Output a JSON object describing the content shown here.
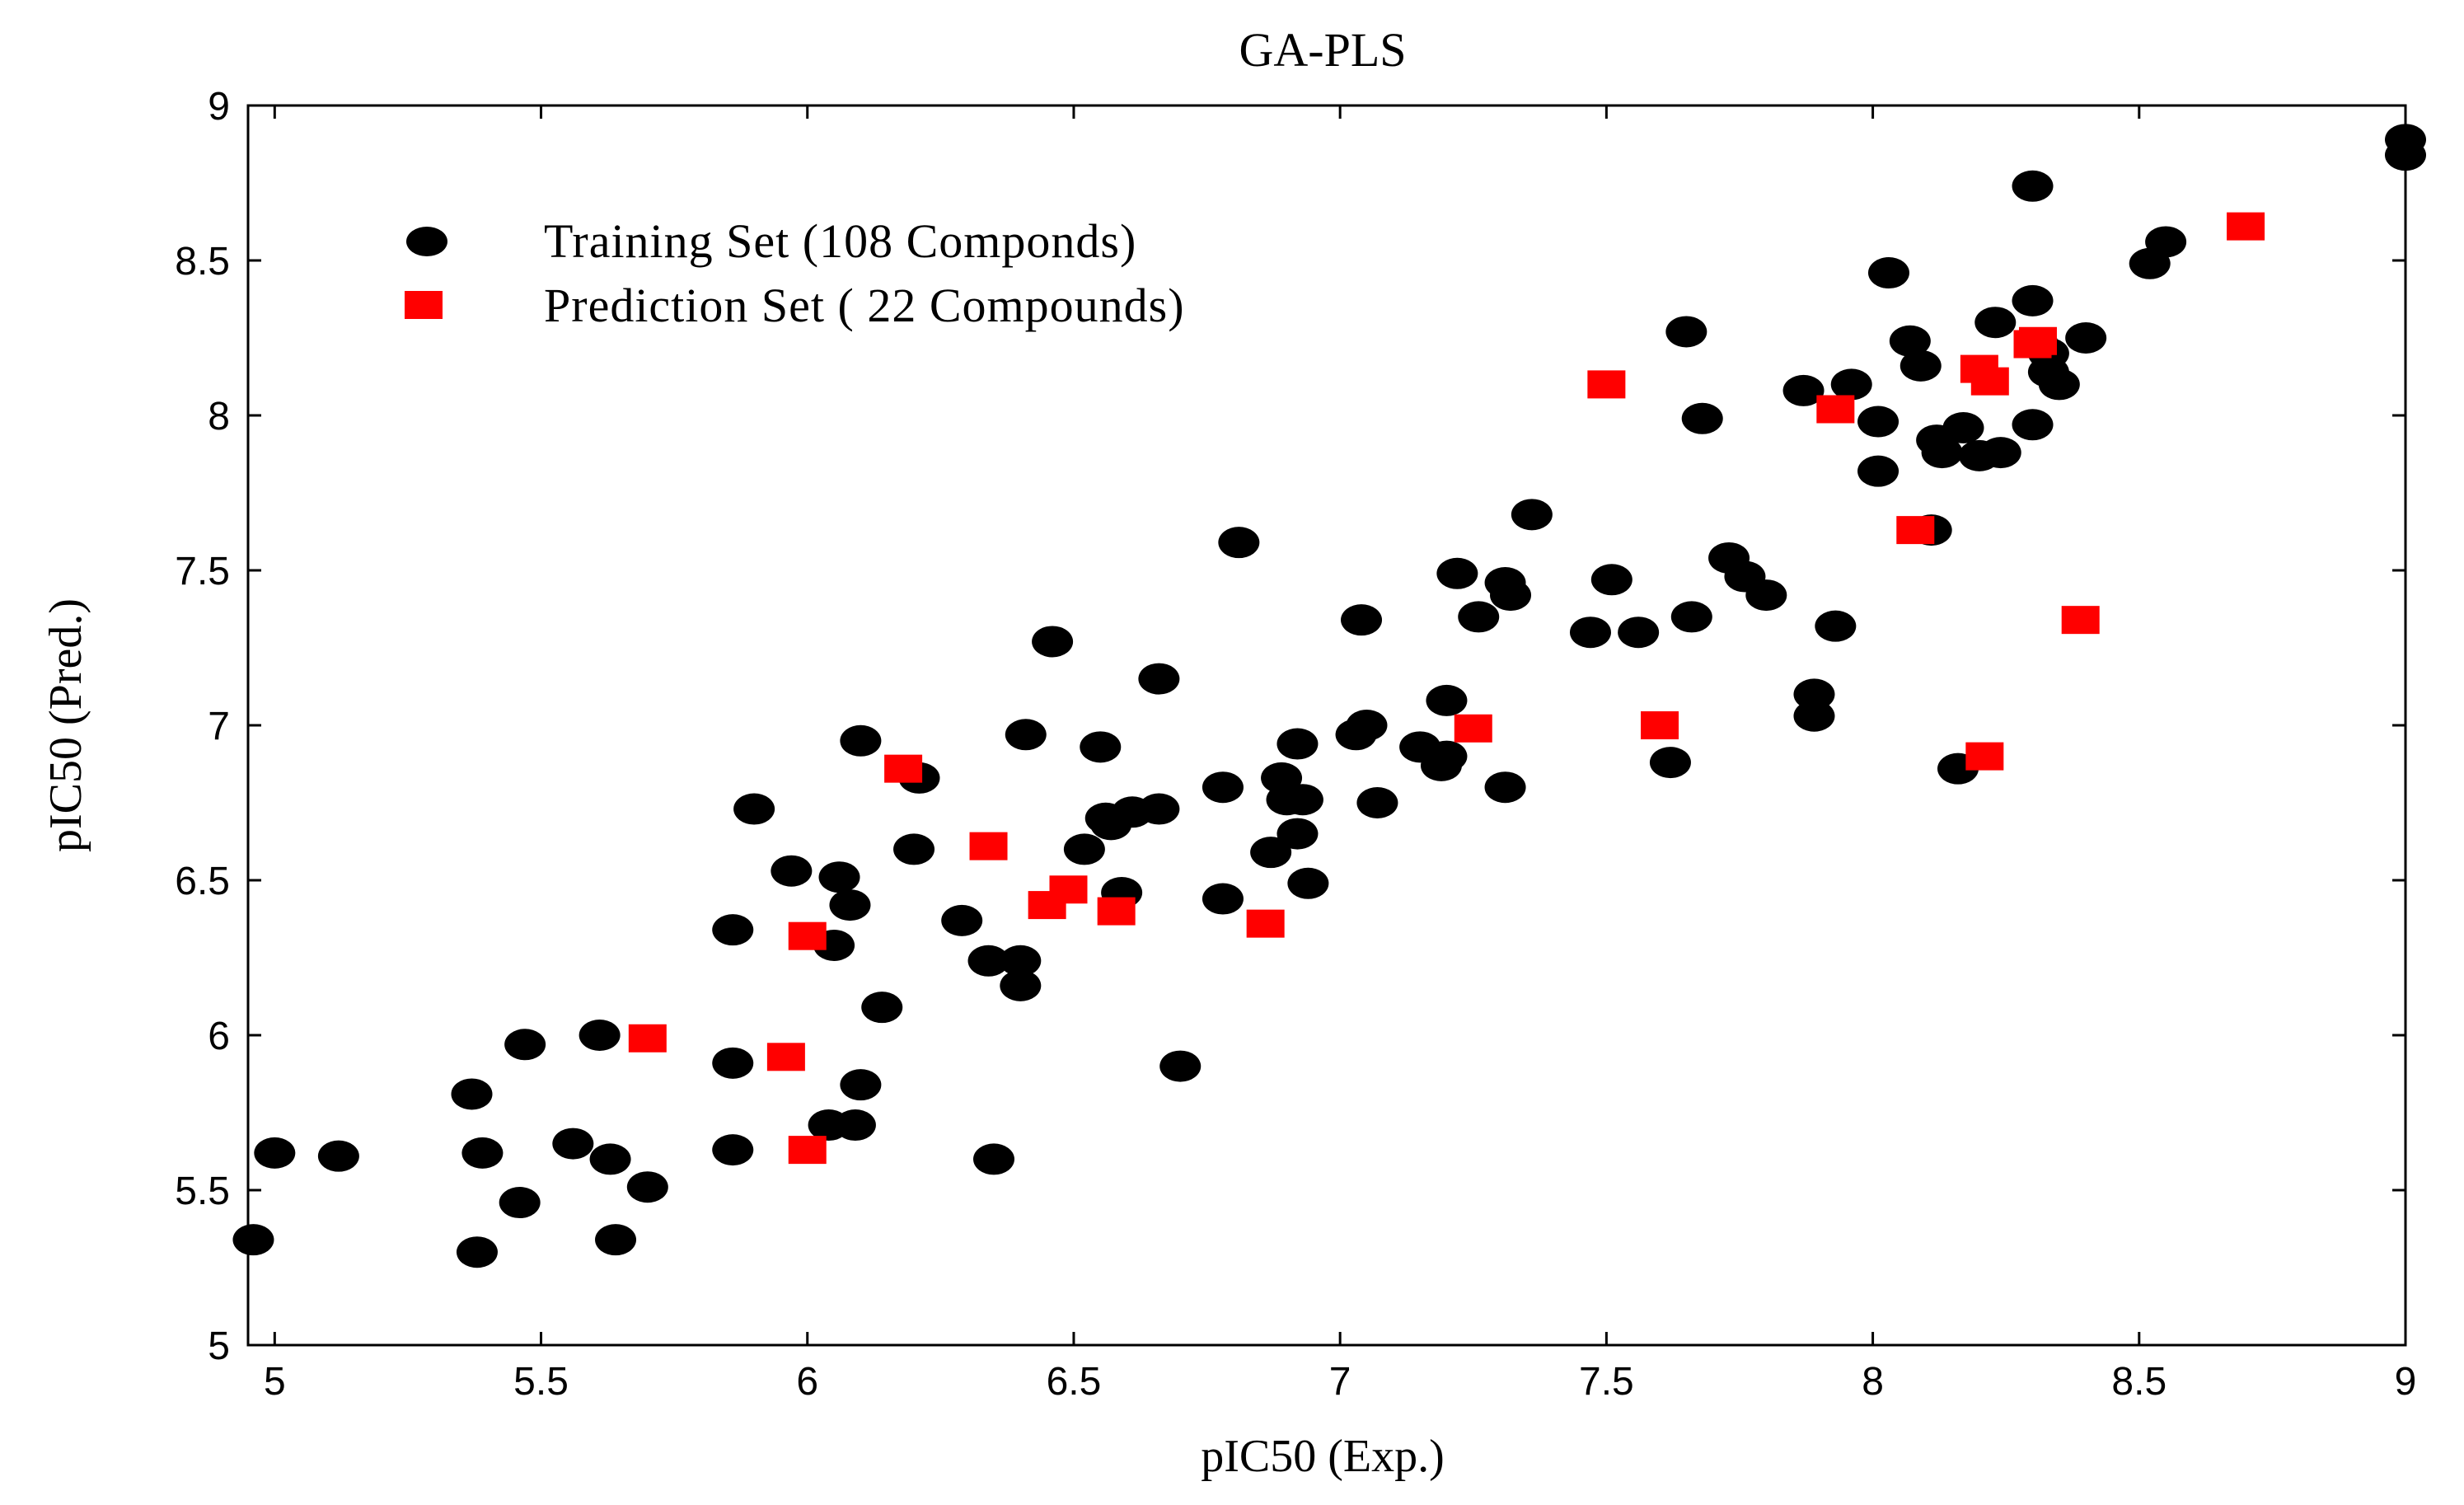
{
  "chart_data": {
    "type": "scatter",
    "title": "GA-PLS",
    "xlabel": "pIC50 (Exp.)",
    "ylabel": "pIC50 (Pred.)",
    "xlim": [
      4.95,
      9.0
    ],
    "ylim": [
      5.0,
      9.0
    ],
    "xticks": [
      5,
      5.5,
      6,
      6.5,
      7,
      7.5,
      8,
      8.5,
      9
    ],
    "yticks": [
      5,
      5.5,
      6,
      6.5,
      7,
      7.5,
      8,
      8.5,
      9
    ],
    "xtick_labels": [
      "5",
      "5.5",
      "6",
      "6.5",
      "7",
      "7.5",
      "8",
      "8.5",
      "9"
    ],
    "ytick_labels": [
      "5",
      "5.5",
      "6",
      "6.5",
      "7",
      "7.5",
      "8",
      "8.5",
      "9"
    ],
    "grid": false,
    "legend_position": "top-left",
    "series": [
      {
        "name": "Training Set (108 Componds)",
        "marker": "ellipse",
        "color": "#000000",
        "points": [
          [
            4.96,
            5.34
          ],
          [
            5.0,
            5.62
          ],
          [
            5.12,
            5.61
          ],
          [
            5.37,
            5.81
          ],
          [
            5.38,
            5.3
          ],
          [
            5.39,
            5.62
          ],
          [
            5.46,
            5.46
          ],
          [
            5.47,
            5.97
          ],
          [
            5.56,
            5.65
          ],
          [
            5.61,
            6.0
          ],
          [
            5.63,
            5.6
          ],
          [
            5.64,
            5.34
          ],
          [
            5.7,
            5.51
          ],
          [
            5.86,
            6.34
          ],
          [
            5.86,
            5.91
          ],
          [
            5.86,
            5.63
          ],
          [
            5.9,
            6.73
          ],
          [
            5.97,
            6.53
          ],
          [
            6.04,
            5.71
          ],
          [
            6.05,
            6.29
          ],
          [
            6.06,
            6.51
          ],
          [
            6.08,
            6.42
          ],
          [
            6.09,
            5.71
          ],
          [
            6.1,
            5.84
          ],
          [
            6.1,
            6.95
          ],
          [
            6.14,
            6.09
          ],
          [
            6.2,
            6.6
          ],
          [
            6.21,
            6.83
          ],
          [
            6.29,
            6.37
          ],
          [
            6.34,
            6.24
          ],
          [
            6.35,
            5.6
          ],
          [
            6.4,
            6.24
          ],
          [
            6.4,
            6.16
          ],
          [
            6.41,
            6.97
          ],
          [
            6.46,
            7.27
          ],
          [
            6.52,
            6.6
          ],
          [
            6.55,
            6.93
          ],
          [
            6.56,
            6.7
          ],
          [
            6.59,
            6.46
          ],
          [
            6.61,
            6.72
          ],
          [
            6.66,
            6.73
          ],
          [
            6.66,
            7.15
          ],
          [
            6.7,
            5.9
          ],
          [
            6.78,
            6.44
          ],
          [
            6.78,
            6.8
          ],
          [
            6.81,
            7.59
          ],
          [
            6.87,
            6.59
          ],
          [
            6.89,
            6.83
          ],
          [
            6.9,
            6.76
          ],
          [
            6.92,
            6.65
          ],
          [
            6.92,
            6.94
          ],
          [
            6.93,
            6.76
          ],
          [
            6.94,
            6.49
          ],
          [
            7.03,
            6.97
          ],
          [
            7.04,
            7.34
          ],
          [
            7.05,
            7.0
          ],
          [
            7.07,
            6.75
          ],
          [
            7.15,
            6.93
          ],
          [
            7.19,
            6.87
          ],
          [
            7.2,
            7.08
          ],
          [
            7.22,
            7.49
          ],
          [
            7.26,
            7.35
          ],
          [
            7.31,
            7.46
          ],
          [
            7.31,
            6.8
          ],
          [
            7.32,
            7.42
          ],
          [
            7.36,
            7.68
          ],
          [
            7.47,
            7.3
          ],
          [
            7.51,
            7.47
          ],
          [
            7.56,
            7.3
          ],
          [
            7.62,
            6.88
          ],
          [
            7.65,
            8.27
          ],
          [
            7.66,
            7.35
          ],
          [
            7.68,
            7.99
          ],
          [
            7.73,
            7.54
          ],
          [
            7.76,
            7.48
          ],
          [
            7.8,
            7.42
          ],
          [
            7.87,
            8.08
          ],
          [
            7.89,
            7.03
          ],
          [
            7.89,
            7.1
          ],
          [
            7.93,
            7.32
          ],
          [
            7.96,
            8.1
          ],
          [
            8.01,
            7.82
          ],
          [
            8.01,
            7.98
          ],
          [
            8.03,
            8.46
          ],
          [
            8.07,
            8.24
          ],
          [
            8.09,
            8.16
          ],
          [
            8.11,
            7.63
          ],
          [
            8.13,
            7.88
          ],
          [
            8.16,
            6.86
          ],
          [
            8.17,
            7.96
          ],
          [
            8.2,
            7.87
          ],
          [
            8.23,
            8.3
          ],
          [
            8.24,
            7.88
          ],
          [
            8.3,
            8.74
          ],
          [
            8.3,
            8.37
          ],
          [
            8.3,
            7.97
          ],
          [
            8.31,
            8.23
          ],
          [
            8.33,
            8.2
          ],
          [
            8.33,
            8.14
          ],
          [
            8.35,
            8.1
          ],
          [
            8.4,
            8.25
          ],
          [
            8.52,
            8.49
          ],
          [
            8.55,
            8.56
          ],
          [
            9.0,
            8.89
          ],
          [
            9.0,
            8.84
          ],
          [
            8.12,
            7.92
          ],
          [
            7.2,
            6.9
          ],
          [
            6.57,
            6.68
          ]
        ]
      },
      {
        "name": "Prediction Set ( 22 Compounds)",
        "marker": "square",
        "color": "#ff0000",
        "points": [
          [
            5.7,
            5.99
          ],
          [
            5.96,
            5.93
          ],
          [
            6.0,
            6.32
          ],
          [
            6.0,
            5.63
          ],
          [
            6.18,
            6.86
          ],
          [
            6.34,
            6.61
          ],
          [
            6.45,
            6.42
          ],
          [
            6.49,
            6.47
          ],
          [
            6.58,
            6.4
          ],
          [
            6.86,
            6.36
          ],
          [
            7.25,
            6.99
          ],
          [
            7.5,
            8.1
          ],
          [
            7.6,
            7.0
          ],
          [
            7.93,
            8.02
          ],
          [
            8.08,
            7.63
          ],
          [
            8.2,
            8.15
          ],
          [
            8.22,
            8.11
          ],
          [
            8.21,
            6.9
          ],
          [
            8.3,
            8.23
          ],
          [
            8.39,
            7.34
          ],
          [
            8.7,
            8.61
          ],
          [
            8.31,
            8.24
          ]
        ]
      }
    ]
  }
}
